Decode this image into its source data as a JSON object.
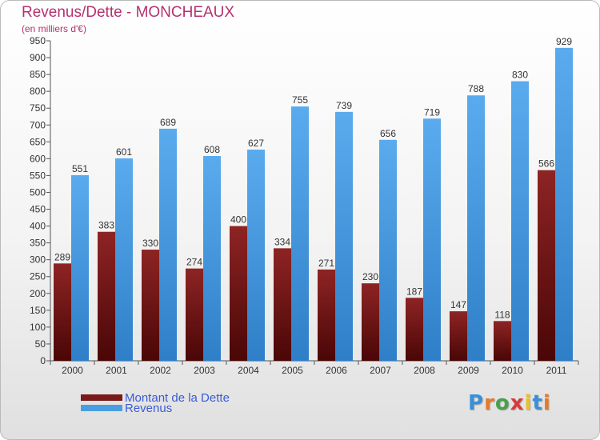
{
  "chart_data": {
    "type": "bar",
    "title": "Revenus/Dette - MONCHEAUX",
    "subtitle": "(en milliers d'€)",
    "categories": [
      "2000",
      "2001",
      "2002",
      "2003",
      "2004",
      "2005",
      "2006",
      "2007",
      "2008",
      "2009",
      "2010",
      "2011"
    ],
    "series": [
      {
        "name": "Montant de la Dette",
        "color": "#7a1a1a",
        "values": [
          289,
          383,
          330,
          274,
          400,
          334,
          271,
          230,
          187,
          147,
          118,
          566
        ]
      },
      {
        "name": "Revenus",
        "color": "#4a9ee0",
        "values": [
          551,
          601,
          689,
          608,
          627,
          755,
          739,
          656,
          719,
          788,
          830,
          929
        ]
      }
    ],
    "ylim": [
      0,
      950
    ],
    "ytick_step": 50,
    "grid": false,
    "legend": "bottom-left"
  },
  "logo": {
    "letters": [
      "P",
      "r",
      "o",
      "x",
      "i",
      "t",
      "i"
    ],
    "colors": [
      "#3b8fd6",
      "#e8792a",
      "#4aa04a",
      "#d63b3b",
      "#e8c02a",
      "#3b8fd6",
      "#e8792a"
    ]
  }
}
